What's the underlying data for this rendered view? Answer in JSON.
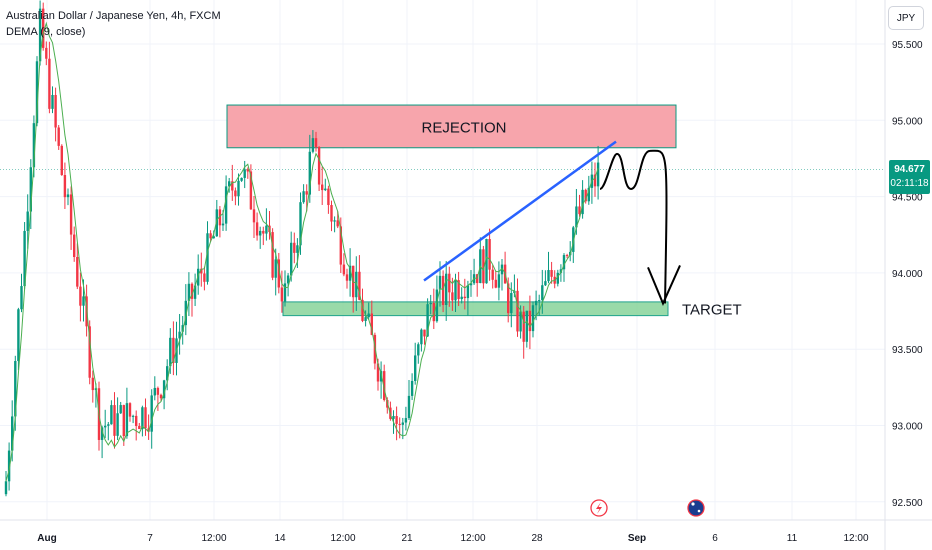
{
  "header": {
    "symbol_line": "Australian Dollar / Japanese Yen, 4h, FXCM",
    "indicator_line": "DEMA (9, close)"
  },
  "currency_button": "JPY",
  "price_tag": {
    "price": "94.677",
    "countdown": "02:11:18"
  },
  "colors": {
    "up": "#089981",
    "down": "#f23645",
    "dema": "#4caf50",
    "rejection_fill": "#f7a5ac",
    "target_fill": "#8fd6a0",
    "zone_border": "#089981",
    "trendline": "#2962ff",
    "projection": "#000000"
  },
  "annotations": {
    "rejection_label": "REJECTION",
    "target_label": "TARGET",
    "rejection_zone": [
      94.82,
      95.1
    ],
    "target_zone": [
      93.72,
      93.81
    ],
    "trendline": {
      "start_price": 93.95,
      "end_price": 94.86
    },
    "projection_path": [
      94.55,
      94.78,
      94.55,
      94.8,
      93.8
    ],
    "bottom_icons": [
      "flash-event-icon",
      "australia-flag-event-icon"
    ]
  },
  "chart_data": {
    "type": "candlestick",
    "title": "Australian Dollar / Japanese Yen, 4h, FXCM",
    "timeframe": "4h",
    "indicator": "DEMA (9, close)",
    "ylim": [
      92.4,
      95.75
    ],
    "y_ticks": [
      "95.500",
      "95.000",
      "94.500",
      "94.000",
      "93.500",
      "93.000",
      "92.500"
    ],
    "x_ticks": [
      "Aug",
      "7",
      "12:00",
      "14",
      "12:00",
      "21",
      "12:00",
      "28",
      "Sep",
      "6",
      "11",
      "12:00"
    ],
    "current_price": 94.677,
    "key_waypoints": [
      {
        "time": "Aug start",
        "price": 92.55
      },
      {
        "time": "Aug 1-2",
        "price": 95.6
      },
      {
        "time": "Aug 5",
        "price": 93.0
      },
      {
        "time": "Aug 8",
        "price": 93.1
      },
      {
        "time": "Aug 12",
        "price": 94.7
      },
      {
        "time": "Aug 14",
        "price": 93.85
      },
      {
        "time": "Aug 15",
        "price": 94.8
      },
      {
        "time": "Aug 20",
        "price": 92.95
      },
      {
        "time": "Aug 22",
        "price": 93.8
      },
      {
        "time": "Aug 26",
        "price": 94.1
      },
      {
        "time": "Aug 27",
        "price": 93.6
      },
      {
        "time": "Aug 30",
        "price": 94.68
      }
    ]
  }
}
